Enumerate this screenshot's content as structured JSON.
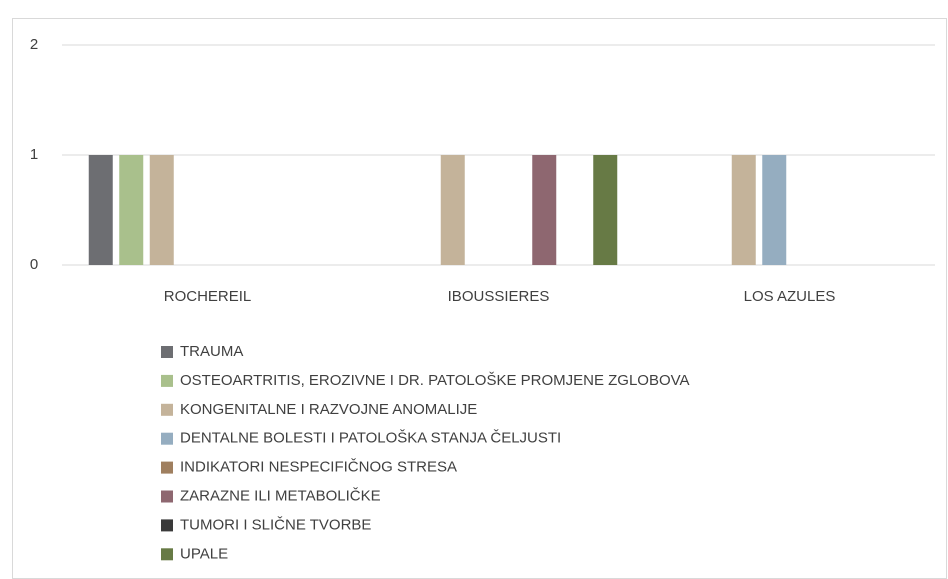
{
  "chart_data": {
    "type": "bar",
    "categories": [
      "ROCHEREIL",
      "IBOUSSIERES",
      "LOS AZULES"
    ],
    "series": [
      {
        "name": "TRAUMA",
        "color": "#6d6e72",
        "values": [
          1,
          0,
          0
        ]
      },
      {
        "name": "OSTEOARTRITIS, EROZIVNE I DR. PATOLOŠKE PROMJENE ZGLOBOVA",
        "color": "#a9c08c",
        "values": [
          1,
          0,
          0
        ]
      },
      {
        "name": "KONGENITALNE I RAZVOJNE ANOMALIJE",
        "color": "#c4b39a",
        "values": [
          1,
          1,
          1
        ]
      },
      {
        "name": "DENTALNE BOLESTI I PATOLOŠKA STANJA ČELJUSTI",
        "color": "#95adc0",
        "values": [
          0,
          0,
          1
        ]
      },
      {
        "name": "INDIKATORI NESPECIFIČNOG STRESA",
        "color": "#9f7f5f",
        "values": [
          0,
          0,
          0
        ]
      },
      {
        "name": "ZARAZNE ILI METABOLIČKE",
        "color": "#8e6770",
        "values": [
          0,
          1,
          0
        ]
      },
      {
        "name": "TUMORI I SLIČNE TVORBE",
        "color": "#3a3a3a",
        "values": [
          0,
          0,
          0
        ]
      },
      {
        "name": "UPALE",
        "color": "#677a45",
        "values": [
          0,
          1,
          0
        ]
      }
    ],
    "ylim": [
      0,
      2
    ],
    "yticks": [
      0,
      1,
      2
    ],
    "grid": true,
    "legend": "bottom"
  }
}
